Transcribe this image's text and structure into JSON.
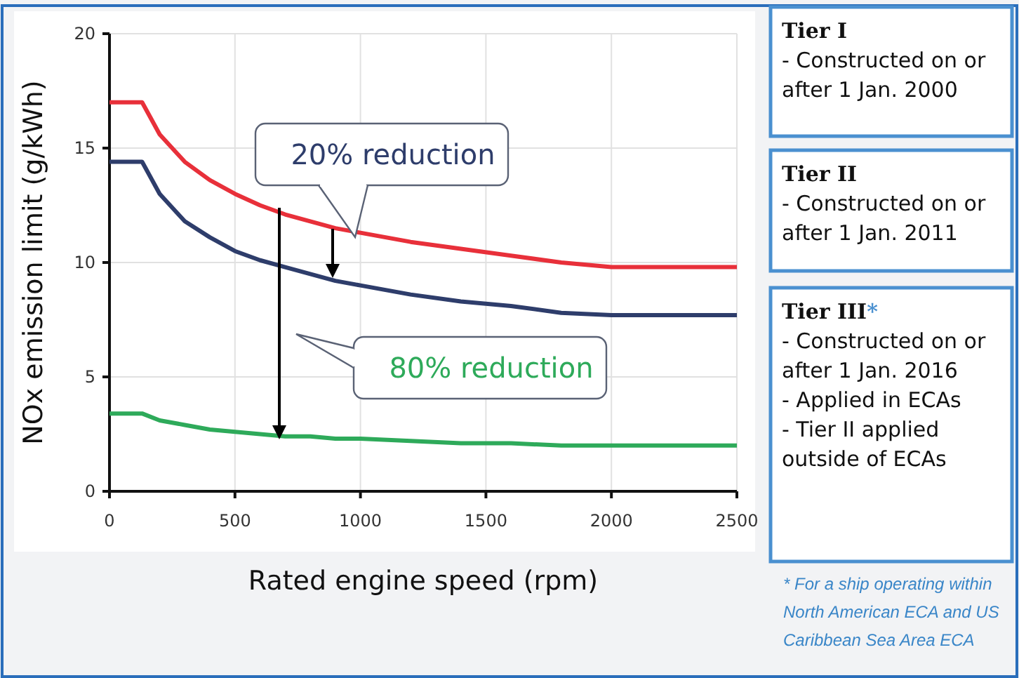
{
  "chart_data": {
    "type": "line",
    "xlabel": "Rated engine speed (rpm)",
    "ylabel": "NOx emission limit (g/kWh)",
    "x": [
      0,
      130,
      200,
      300,
      400,
      500,
      600,
      700,
      800,
      900,
      1000,
      1200,
      1400,
      1600,
      1800,
      2000,
      2500
    ],
    "series": [
      {
        "color": "#e8303a",
        "values": [
          17,
          17,
          15.6,
          14.4,
          13.6,
          13,
          12.5,
          12.1,
          11.8,
          11.5,
          11.3,
          10.9,
          10.6,
          10.3,
          10,
          9.8,
          9.8
        ]
      },
      {
        "color": "#2e3d6b",
        "values": [
          14.4,
          14.4,
          13,
          11.8,
          11.1,
          10.5,
          10.1,
          9.8,
          9.5,
          9.2,
          9,
          8.6,
          8.3,
          8.1,
          7.8,
          7.7,
          7.7
        ]
      },
      {
        "color": "#2eaa5a",
        "values": [
          3.4,
          3.4,
          3.1,
          2.9,
          2.7,
          2.6,
          2.5,
          2.4,
          2.4,
          2.3,
          2.3,
          2.2,
          2.1,
          2.1,
          2,
          2,
          2
        ]
      }
    ],
    "xlim": [
      0,
      2500
    ],
    "xticks": [
      0,
      500,
      1000,
      1500,
      2000,
      2500
    ],
    "ylim": [
      0,
      20
    ],
    "yticks": [
      0,
      5,
      10,
      15,
      20
    ],
    "grid": true,
    "marker": "none",
    "line_style": "solid",
    "annotations": [
      "20% reduction",
      "80% reduction",
      "Tier I\n- Constructed on or\nafter 1 Jan. 2000",
      "Tier II\n- Constructed on or\nafter 1 Jan. 2011",
      "Tier III*\n- Constructed on or\nafter 1 Jan. 2016\n- Applied in ECAs\n- Tier II applied\noutside of ECAs",
      "* For a ship operating within\nNorth American ECA and US\nCaribbean Sea Area ECA"
    ]
  }
}
